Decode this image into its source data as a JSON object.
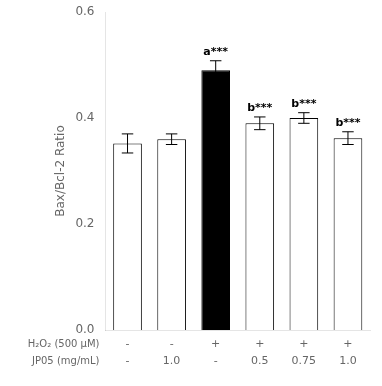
{
  "chart_data": {
    "type": "bar",
    "categories": [
      [
        "-",
        "-"
      ],
      [
        "-",
        "1.0"
      ],
      [
        "+",
        "-"
      ],
      [
        "+",
        "0.5"
      ],
      [
        "+",
        "0.75"
      ],
      [
        "+",
        "1.0"
      ]
    ],
    "category_levels": [
      "H₂O₂ (500 μM)",
      "JP05 (mg/mL)"
    ],
    "values": [
      0.352,
      0.36,
      0.49,
      0.39,
      0.4,
      0.362
    ],
    "errors": [
      0.018,
      0.01,
      0.018,
      0.012,
      0.01,
      0.012
    ],
    "colors": [
      "#ffffff",
      "#ffffff",
      "#000000",
      "#ffffff",
      "#ffffff",
      "#ffffff"
    ],
    "ylabel": "Bax/Bcl-2 Ratio",
    "ylim": [
      0.0,
      0.6
    ],
    "yticks": [
      {
        "value": 0.0,
        "label": "0.0"
      },
      0.2,
      0.4,
      0.6
    ],
    "annotations": [
      {
        "index": 2,
        "text": "a***"
      },
      {
        "index": 3,
        "text": "b***"
      },
      {
        "index": 4,
        "text": "b***"
      },
      {
        "index": 5,
        "text": "b***"
      }
    ],
    "grid": false
  }
}
